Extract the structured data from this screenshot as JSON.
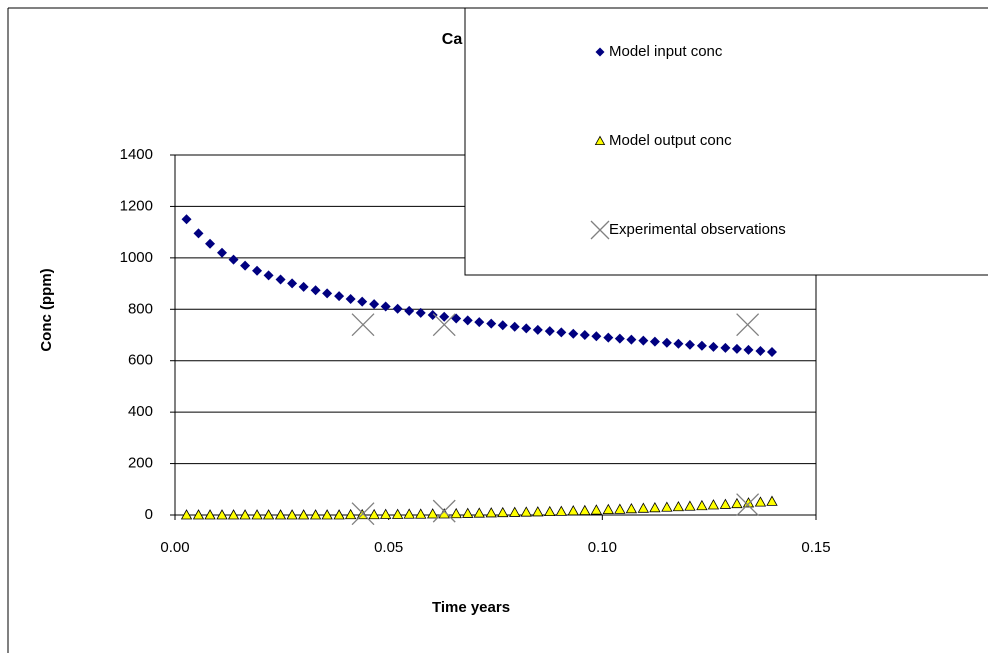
{
  "chart_data": {
    "type": "scatter",
    "title": "Ca",
    "x_label": "Time years",
    "y_label": "Conc (ppm)",
    "xlim": [
      0,
      0.15
    ],
    "ylim": [
      0,
      1400
    ],
    "xticks": [
      {
        "value": 0,
        "label": "0.00"
      },
      {
        "value": 0.05,
        "label": "0.05"
      },
      {
        "value": 0.1,
        "label": "0.10"
      },
      {
        "value": 0.15,
        "label": "0.15"
      }
    ],
    "yticks": [
      0,
      200,
      400,
      600,
      800,
      1000,
      1200,
      1400
    ],
    "grid": true,
    "legend": "upper right",
    "series": [
      {
        "name": "Model input conc",
        "color": "#000080",
        "marker": "diamond",
        "x": [
          0.0027,
          0.0055,
          0.0082,
          0.011,
          0.0137,
          0.0164,
          0.0192,
          0.0219,
          0.0247,
          0.0274,
          0.0301,
          0.0329,
          0.0356,
          0.0384,
          0.0411,
          0.0438,
          0.0466,
          0.0493,
          0.0521,
          0.0548,
          0.0575,
          0.0603,
          0.063,
          0.0658,
          0.0685,
          0.0712,
          0.074,
          0.0767,
          0.0795,
          0.0822,
          0.0849,
          0.0877,
          0.0904,
          0.0932,
          0.0959,
          0.0986,
          0.1014,
          0.1041,
          0.1068,
          0.1096,
          0.1123,
          0.1151,
          0.1178,
          0.1205,
          0.1233,
          0.126,
          0.1288,
          0.1315,
          0.1342,
          0.137,
          0.1397
        ],
        "values": [
          1150,
          1095,
          1055,
          1020,
          993,
          970,
          950,
          932,
          916,
          901,
          887,
          874,
          862,
          851,
          840,
          830,
          820,
          811,
          802,
          794,
          786,
          778,
          771,
          764,
          757,
          750,
          744,
          738,
          732,
          726,
          720,
          715,
          710,
          705,
          700,
          695,
          690,
          686,
          682,
          678,
          674,
          670,
          666,
          662,
          658,
          654,
          650,
          646,
          642,
          638,
          634
        ]
      },
      {
        "name": "Model output conc",
        "color": "#ffff00",
        "marker": "triangle",
        "x": [
          0.0027,
          0.0055,
          0.0082,
          0.011,
          0.0137,
          0.0164,
          0.0192,
          0.0219,
          0.0247,
          0.0274,
          0.0301,
          0.0329,
          0.0356,
          0.0384,
          0.0411,
          0.0438,
          0.0466,
          0.0493,
          0.0521,
          0.0548,
          0.0575,
          0.0603,
          0.063,
          0.0658,
          0.0685,
          0.0712,
          0.074,
          0.0767,
          0.0795,
          0.0822,
          0.0849,
          0.0877,
          0.0904,
          0.0932,
          0.0959,
          0.0986,
          0.1014,
          0.1041,
          0.1068,
          0.1096,
          0.1123,
          0.1151,
          0.1178,
          0.1205,
          0.1233,
          0.126,
          0.1288,
          0.1315,
          0.1342,
          0.137,
          0.1397
        ],
        "values": [
          0,
          0,
          0,
          0,
          0,
          0,
          0,
          0,
          0,
          0,
          0,
          0,
          0,
          0,
          1,
          1,
          1,
          2,
          2,
          3,
          3,
          4,
          4,
          5,
          6,
          7,
          8,
          9,
          10,
          11,
          12,
          13,
          14,
          16,
          17,
          19,
          21,
          22,
          24,
          26,
          28,
          30,
          32,
          34,
          36,
          39,
          41,
          44,
          47,
          50,
          53
        ]
      },
      {
        "name": "Experimental observations",
        "color": "#808080",
        "marker": "x",
        "x": [
          0.044,
          0.044,
          0.063,
          0.063,
          0.134,
          0.134
        ],
        "values": [
          740,
          5,
          740,
          15,
          740,
          40
        ]
      }
    ]
  }
}
